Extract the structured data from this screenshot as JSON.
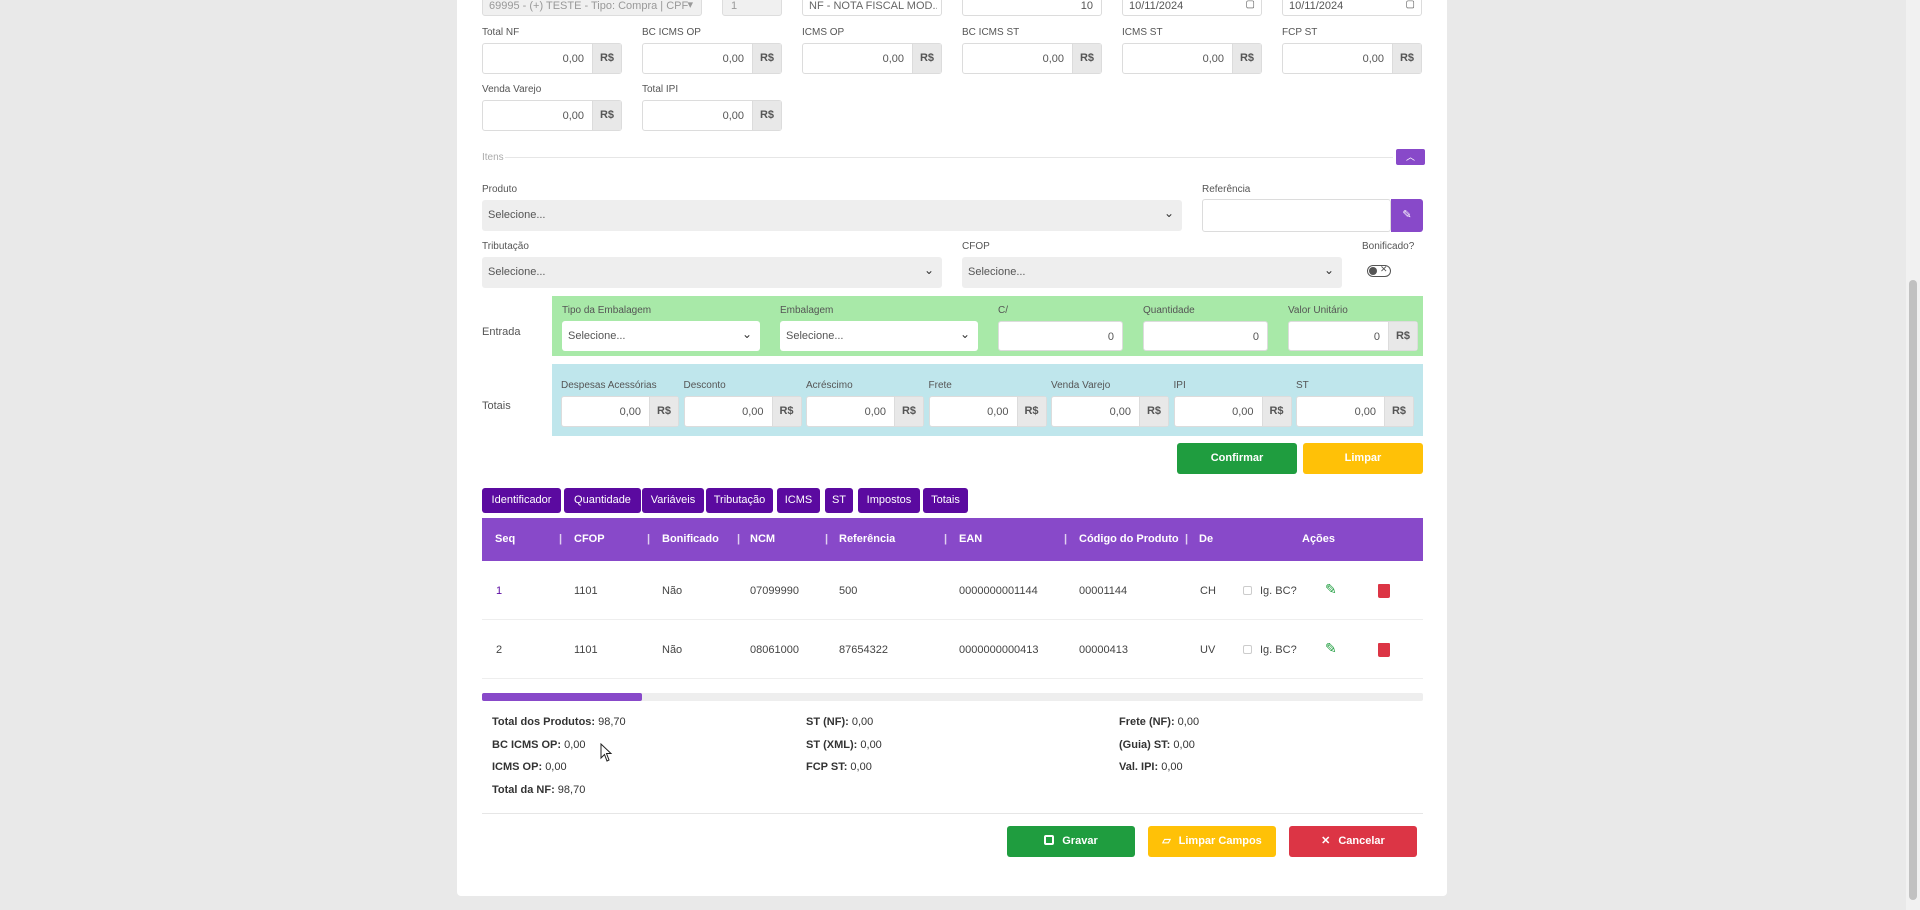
{
  "top": {
    "fornecedor": "69995 - (+) TESTE - Tipo: Compra | CPF E...",
    "serie": "1",
    "modelo": "NF - NOTA FISCAL MOD...",
    "numero": "10",
    "data_emissao": "10/11/2024",
    "data_entrada": "10/11/2024"
  },
  "totals_fields": [
    {
      "label": "Total NF",
      "value": "0,00",
      "currency": "R$"
    },
    {
      "label": "BC ICMS OP",
      "value": "0,00",
      "currency": "R$"
    },
    {
      "label": "ICMS OP",
      "value": "0,00",
      "currency": "R$"
    },
    {
      "label": "BC ICMS ST",
      "value": "0,00",
      "currency": "R$"
    },
    {
      "label": "ICMS ST",
      "value": "0,00",
      "currency": "R$"
    },
    {
      "label": "FCP ST",
      "value": "0,00",
      "currency": "R$"
    },
    {
      "label": "Venda Varejo",
      "value": "0,00",
      "currency": "R$"
    },
    {
      "label": "Total IPI",
      "value": "0,00",
      "currency": "R$"
    }
  ],
  "itens": {
    "section_label": "Itens",
    "produto_label": "Produto",
    "produto_placeholder": "Selecione...",
    "referencia_label": "Referência",
    "tributacao_label": "Tributação",
    "tributacao_placeholder": "Selecione...",
    "cfop_label": "CFOP",
    "cfop_placeholder": "Selecione...",
    "bonificado_label": "Bonificado?"
  },
  "entrada": {
    "label": "Entrada",
    "tipo_embalagem_label": "Tipo da Embalagem",
    "tipo_embalagem_value": "Selecione...",
    "embalagem_label": "Embalagem",
    "embalagem_value": "Selecione...",
    "c_label": "C/",
    "c_value": "0",
    "quantidade_label": "Quantidade",
    "quantidade_value": "0",
    "valor_unitario_label": "Valor Unitário",
    "valor_unitario_value": "0",
    "currency": "R$"
  },
  "totais": {
    "label": "Totais",
    "fields": [
      {
        "label": "Despesas Acessórias",
        "value": "0,00"
      },
      {
        "label": "Desconto",
        "value": "0,00"
      },
      {
        "label": "Acréscimo",
        "value": "0,00"
      },
      {
        "label": "Frete",
        "value": "0,00"
      },
      {
        "label": "Venda Varejo",
        "value": "0,00"
      },
      {
        "label": "IPI",
        "value": "0,00"
      },
      {
        "label": "ST",
        "value": "0,00"
      }
    ],
    "currency": "R$"
  },
  "actions": {
    "confirmar": "Confirmar",
    "limpar": "Limpar"
  },
  "tabs": [
    "Identificador",
    "Quantidade",
    "Variáveis",
    "Tributação",
    "ICMS",
    "ST",
    "Impostos",
    "Totais"
  ],
  "table": {
    "headers": [
      "Seq",
      "CFOP",
      "Bonificado",
      "NCM",
      "Referência",
      "EAN",
      "Código do Produto",
      "De",
      "Ações"
    ],
    "rows": [
      {
        "seq": "1",
        "cfop": "1101",
        "bonificado": "Não",
        "ncm": "07099990",
        "referencia": "500",
        "ean": "0000000001144",
        "codigo": "00001144",
        "desc": "CH",
        "ig_bc": "Ig. BC?"
      },
      {
        "seq": "2",
        "cfop": "1101",
        "bonificado": "Não",
        "ncm": "08061000",
        "referencia": "87654322",
        "ean": "0000000000413",
        "codigo": "00000413",
        "desc": "UV",
        "ig_bc": "Ig. BC?"
      }
    ],
    "scroll_fraction": 0.17
  },
  "summary": {
    "col1": [
      {
        "label": "Total dos Produtos:",
        "value": "98,70"
      },
      {
        "label": "BC ICMS OP:",
        "value": "0,00"
      },
      {
        "label": "ICMS OP:",
        "value": "0,00"
      },
      {
        "label": "Total da NF:",
        "value": "98,70"
      }
    ],
    "col2": [
      {
        "label": "ST (NF):",
        "value": "0,00"
      },
      {
        "label": "ST (XML):",
        "value": "0,00"
      },
      {
        "label": "FCP ST:",
        "value": "0,00"
      }
    ],
    "col3": [
      {
        "label": "Frete (NF):",
        "value": "0,00"
      },
      {
        "label": "(Guia) ST:",
        "value": "0,00"
      },
      {
        "label": "Val. IPI:",
        "value": "0,00"
      }
    ]
  },
  "footer": {
    "gravar": "Gravar",
    "limpar_campos": "Limpar Campos",
    "cancelar": "Cancelar"
  },
  "colors": {
    "purple": "#8849c9",
    "dark_purple": "#5b0aa0",
    "green": "#1f9d3f",
    "yellow": "#ffc107",
    "red": "#dc3545",
    "entrada_bg": "#a8e9a8",
    "totais_bg": "#bfe6ec"
  }
}
